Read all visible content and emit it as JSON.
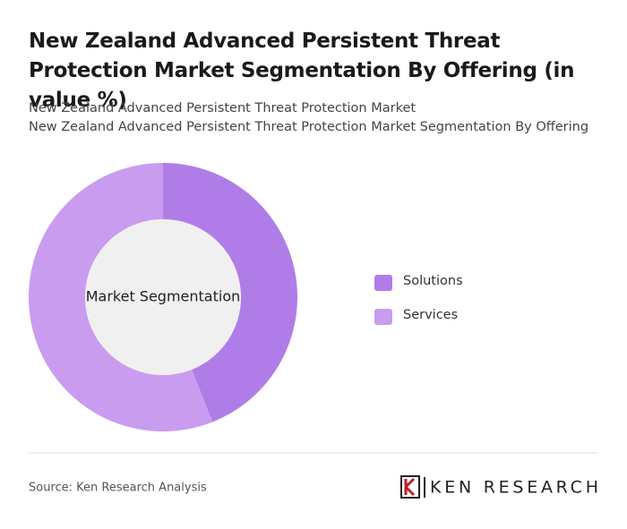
{
  "chart_data": {
    "type": "donut",
    "title": "New Zealand Advanced Persistent Threat Protection Market Segmentation By Offering (in value %)",
    "subtitle": [
      "New Zealand Advanced Persistent Threat Protection Market",
      "New Zealand Advanced Persistent Threat Protection Market Segmentation By Offering"
    ],
    "center_label": "Market Segmentation",
    "categories": [
      "Solutions",
      "Services"
    ],
    "values": [
      44,
      56
    ],
    "colors": [
      "#b07de8",
      "#c99cf0"
    ],
    "source": "Source: Ken Research Analysis",
    "logo": "KEN RESEARCH"
  }
}
